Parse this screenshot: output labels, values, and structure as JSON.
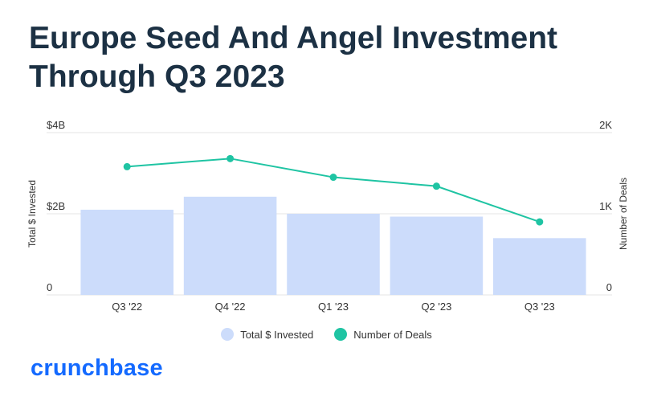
{
  "title": "Europe Seed And Angel Investment Through Q3 2023",
  "colors": {
    "bar": "#ccdcfb",
    "line": "#1fc4a3",
    "title": "#1c3144",
    "grid": "#e4e4e4",
    "brand": "#146aff"
  },
  "chart_data": {
    "type": "bar",
    "categories": [
      "Q3 '22",
      "Q4 '22",
      "Q1 '23",
      "Q2 '23",
      "Q3 '23"
    ],
    "series": [
      {
        "name": "Total $ Invested",
        "type": "bar",
        "axis": "left",
        "values": [
          2.1,
          2.42,
          2.0,
          1.93,
          1.4
        ]
      },
      {
        "name": "Number of Deals",
        "type": "line",
        "axis": "right",
        "values": [
          1580,
          1680,
          1450,
          1340,
          900
        ]
      }
    ],
    "yleft": {
      "label": "Total $ Invested",
      "ticks": [
        "0",
        "$2B",
        "$4B"
      ],
      "range": [
        0,
        4
      ]
    },
    "yright": {
      "label": "Number of Deals",
      "ticks": [
        "0",
        "1K",
        "2K"
      ],
      "range": [
        0,
        2000
      ]
    },
    "grid": true,
    "legend_position": "bottom-center"
  },
  "legend": [
    {
      "label": "Total $ Invested",
      "color": "#ccdcfb"
    },
    {
      "label": "Number of Deals",
      "color": "#1fc4a3"
    }
  ],
  "brand": {
    "logo_text": "crunchbase"
  }
}
